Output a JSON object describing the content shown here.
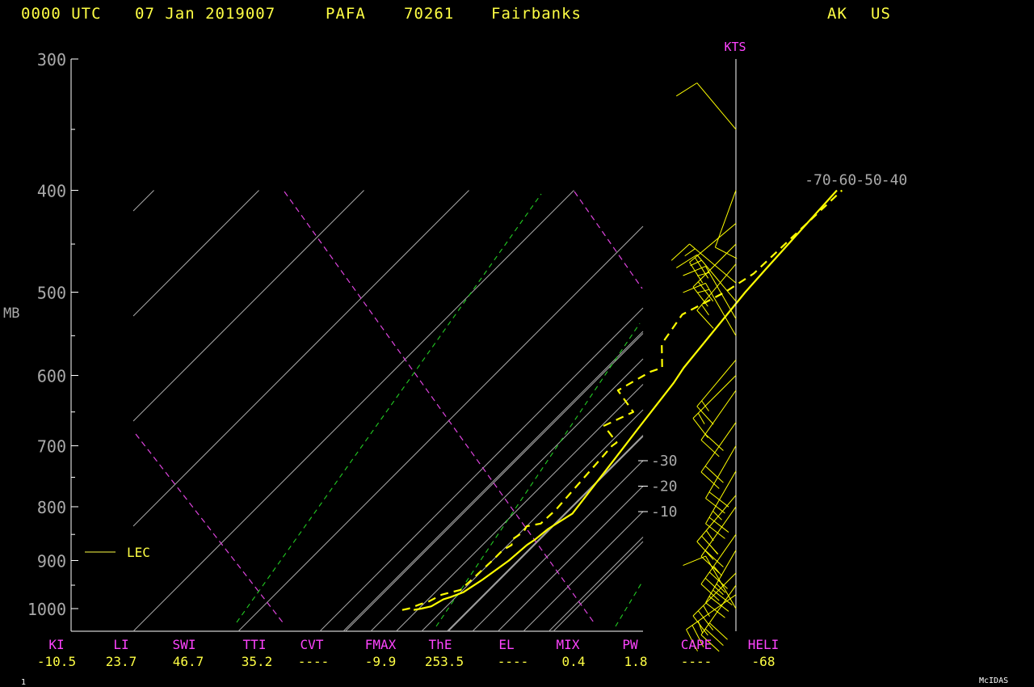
{
  "header": {
    "time": "0000 UTC",
    "date": "07 Jan 2019007",
    "station_id": "PAFA",
    "station_num": "70261",
    "station_name": "Fairbanks",
    "state": "AK",
    "country": "US"
  },
  "chart_data": {
    "type": "line",
    "title": "",
    "ylabel": "MB",
    "pressure_ticks": [
      "300",
      "400",
      "500",
      "600",
      "700",
      "800",
      "900",
      "1000"
    ],
    "ylim": [
      1050,
      300
    ],
    "isotherm_labels": [
      "-70",
      "-60",
      "-50",
      "-40",
      "-30",
      "-20",
      "-10"
    ],
    "legend": [
      {
        "name": "LEC",
        "style": "solid",
        "color": "#ffff44"
      }
    ],
    "temperature": {
      "style": "solid",
      "color": "#ffff00",
      "points": [
        {
          "p": 1003,
          "t": -61.5
        },
        {
          "p": 1000,
          "t": -59.0
        },
        {
          "p": 995,
          "t": -56.0
        },
        {
          "p": 980,
          "t": -54.0
        },
        {
          "p": 975,
          "t": -52.0
        },
        {
          "p": 965,
          "t": -49.0
        },
        {
          "p": 960,
          "t": -48.5
        },
        {
          "p": 940,
          "t": -46.5
        },
        {
          "p": 900,
          "t": -43.5
        },
        {
          "p": 870,
          "t": -42.5
        },
        {
          "p": 860,
          "t": -41.5
        },
        {
          "p": 840,
          "t": -40.5
        },
        {
          "p": 812,
          "t": -37.0
        },
        {
          "p": 700,
          "t": -43.0
        },
        {
          "p": 675,
          "t": -44.5
        },
        {
          "p": 610,
          "t": -48.5
        },
        {
          "p": 590,
          "t": -50.5
        },
        {
          "p": 500,
          "t": -56.0
        },
        {
          "p": 475,
          "t": -57.0
        },
        {
          "p": 400,
          "t": -60.0
        }
      ]
    },
    "dewpoint": {
      "style": "dashed",
      "color": "#ffff00",
      "points": [
        {
          "p": 1003,
          "t": -66.0
        },
        {
          "p": 1000,
          "t": -64.0
        },
        {
          "p": 990,
          "t": -61.0
        },
        {
          "p": 985,
          "t": -59.0
        },
        {
          "p": 970,
          "t": -56.5
        },
        {
          "p": 960,
          "t": -51.0
        },
        {
          "p": 935,
          "t": -50.5
        },
        {
          "p": 900,
          "t": -50.0
        },
        {
          "p": 880,
          "t": -50.0
        },
        {
          "p": 870,
          "t": -48.5
        },
        {
          "p": 860,
          "t": -50.5
        },
        {
          "p": 845,
          "t": -49.0
        },
        {
          "p": 835,
          "t": -50.0
        },
        {
          "p": 830,
          "t": -45.5
        },
        {
          "p": 805,
          "t": -45.0
        },
        {
          "p": 700,
          "t": -48.0
        },
        {
          "p": 695,
          "t": -47.5
        },
        {
          "p": 670,
          "t": -59.0
        },
        {
          "p": 660,
          "t": -56.0
        },
        {
          "p": 650,
          "t": -53.0
        },
        {
          "p": 620,
          "t": -67.5
        },
        {
          "p": 595,
          "t": -62.0
        },
        {
          "p": 590,
          "t": -59.0
        },
        {
          "p": 560,
          "t": -68.5
        },
        {
          "p": 525,
          "t": -72.0
        },
        {
          "p": 500,
          "t": -64.0
        },
        {
          "p": 480,
          "t": -60.0
        },
        {
          "p": 400,
          "t": -58.0
        }
      ]
    },
    "wind_axis_label": "KTS",
    "wind_barbs": [
      {
        "p": 1000,
        "dir": 330,
        "spd": 10
      },
      {
        "p": 970,
        "dir": 235,
        "spd": 25
      },
      {
        "p": 950,
        "dir": 215,
        "spd": 30
      },
      {
        "p": 925,
        "dir": 225,
        "spd": 25
      },
      {
        "p": 880,
        "dir": 210,
        "spd": 35
      },
      {
        "p": 850,
        "dir": 215,
        "spd": 35
      },
      {
        "p": 800,
        "dir": 215,
        "spd": 25
      },
      {
        "p": 780,
        "dir": 220,
        "spd": 25
      },
      {
        "p": 740,
        "dir": 210,
        "spd": 25
      },
      {
        "p": 700,
        "dir": 210,
        "spd": 20
      },
      {
        "p": 665,
        "dir": 215,
        "spd": 20
      },
      {
        "p": 620,
        "dir": 215,
        "spd": 20
      },
      {
        "p": 600,
        "dir": 225,
        "spd": 15
      },
      {
        "p": 580,
        "dir": 220,
        "spd": 15
      },
      {
        "p": 550,
        "dir": 330,
        "spd": 15
      },
      {
        "p": 530,
        "dir": 330,
        "spd": 15
      },
      {
        "p": 510,
        "dir": 320,
        "spd": 15
      },
      {
        "p": 490,
        "dir": 310,
        "spd": 15
      },
      {
        "p": 470,
        "dir": 220,
        "spd": 15
      },
      {
        "p": 450,
        "dir": 225,
        "spd": 20
      },
      {
        "p": 430,
        "dir": 230,
        "spd": 20
      },
      {
        "p": 400,
        "dir": 200,
        "spd": 10
      },
      {
        "p": 350,
        "dir": 320,
        "spd": 10
      }
    ]
  },
  "indices": [
    {
      "name": "KI",
      "value": "-10.5"
    },
    {
      "name": "LI",
      "value": "23.7"
    },
    {
      "name": "SWI",
      "value": "46.7"
    },
    {
      "name": "TTI",
      "value": "35.2"
    },
    {
      "name": "CVT",
      "value": "----"
    },
    {
      "name": "FMAX",
      "value": "-9.9"
    },
    {
      "name": "ThE",
      "value": "253.5"
    },
    {
      "name": "EL",
      "value": "----"
    },
    {
      "name": "MIX",
      "value": "0.4"
    },
    {
      "name": "PW",
      "value": "1.8"
    },
    {
      "name": "CAPE",
      "value": "----"
    },
    {
      "name": "HELI",
      "value": "-68"
    }
  ],
  "footer": {
    "left": "1",
    "right": "McIDAS"
  }
}
